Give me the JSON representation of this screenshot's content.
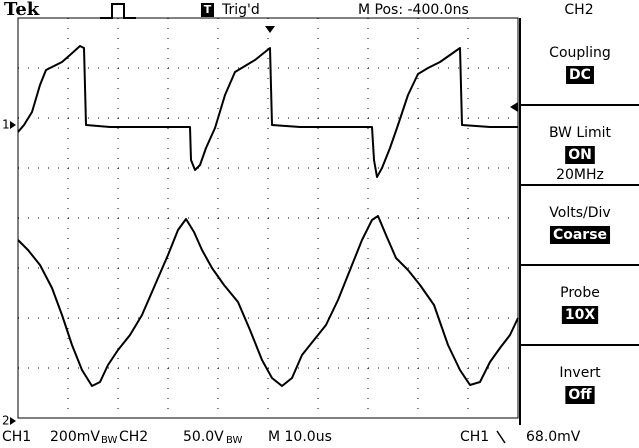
{
  "header": {
    "brand": "Tek",
    "status": "Trig'd",
    "position": "M Pos: -400.0ns",
    "channel": "CH2"
  },
  "menu": [
    {
      "label": "Coupling",
      "value": "DC"
    },
    {
      "label": "BW Limit",
      "value": "ON",
      "extra": "20MHz"
    },
    {
      "label": "Volts/Div",
      "value": "Coarse"
    },
    {
      "label": "Probe",
      "value": "10X"
    },
    {
      "label": "Invert",
      "value": "Off"
    }
  ],
  "markers": {
    "ch1": "1",
    "ch2": "2"
  },
  "footer": {
    "ch1": "CH1",
    "ch1_scale": "200mV",
    "ch1_bw": "BW",
    "ch2": "CH2",
    "ch2_scale": "50.0V",
    "ch2_bw": "BW",
    "time": "M 10.0us",
    "trig_src": "CH1",
    "trig_level": "68.0mV"
  }
}
